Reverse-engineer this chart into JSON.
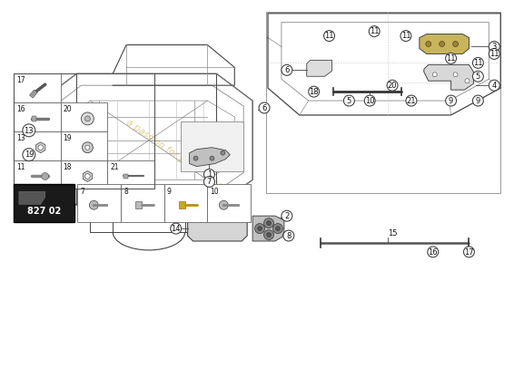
{
  "bg_color": "#ffffff",
  "watermark_text": "a passion for parts since 1994",
  "part_number_label": "827 02",
  "part_number_bg": "#1a1a1a",
  "line_color": "#444444",
  "light_line": "#888888",
  "grid_line": "#aaaaaa",
  "callout_bg": "#ffffff",
  "callout_edge": "#333333",
  "part_color_light": "#e8e8e8",
  "part_color_gold": "#c8b45a",
  "part_color_dark": "#999999",
  "right_panel_border": "#bbbbbb",
  "right_panel_bg": "#f5f5f5"
}
